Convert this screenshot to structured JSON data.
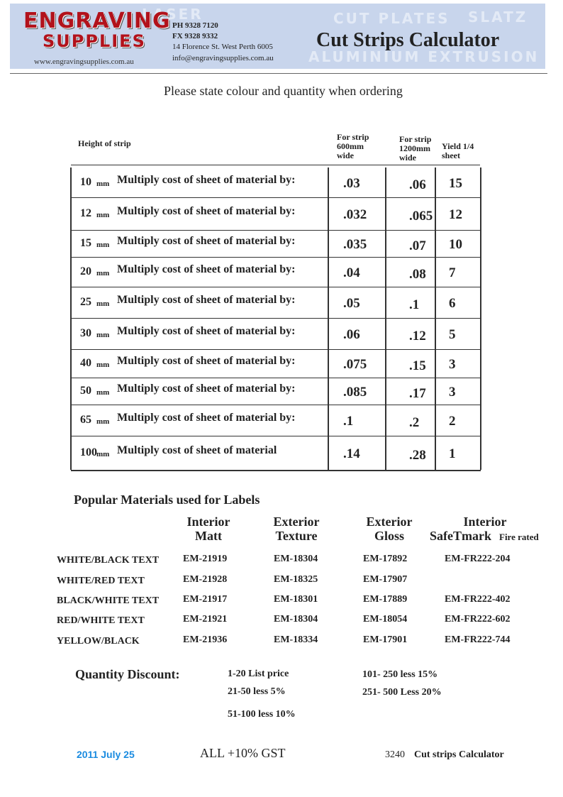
{
  "header": {
    "logo_line1": "ENGRAVING",
    "logo_line2": "SUPPLIES",
    "website": "www.engravingsupplies.com.au",
    "phone": "PH 9328 7120",
    "fax": "FX 9328 9332",
    "address": "14 Florence St. West Perth 6005",
    "email": "info@engravingsupplies.com.au",
    "title": "Cut Strips Calculator",
    "background_words": [
      "LASER",
      "CUT PLATES",
      "SLATZ",
      "ALUMINIUM EXTRUSION"
    ]
  },
  "instruction": "Please state colour and quantity when ordering",
  "table": {
    "headers": [
      "Height of strip",
      "For strip 600mm wide",
      "For strip 1200mm wide",
      "Yield 1/4 sheet"
    ],
    "rows": [
      [
        "10",
        "mm",
        "Multiply cost of sheet of material by:",
        ".03",
        ".06",
        "15"
      ],
      [
        "12",
        "mm",
        "Multiply cost of sheet of material by:",
        ".032",
        ".065",
        "12"
      ],
      [
        "15",
        "mm",
        "Multiply cost of sheet of material by:",
        ".035",
        ".07",
        "10"
      ],
      [
        "20",
        "mm",
        "Multiply cost of sheet of material by:",
        ".04",
        ".08",
        "7"
      ],
      [
        "25",
        "mm",
        "Multiply cost of sheet of material by:",
        ".05",
        ".1",
        "6"
      ],
      [
        "30",
        "mm",
        "Multiply cost of sheet of material by:",
        ".06",
        ".12",
        "5"
      ],
      [
        "40",
        "mm",
        "Multiply cost of sheet of material by:",
        ".075",
        ".15",
        "3"
      ],
      [
        "50",
        "mm",
        "Multiply cost of sheet of material by:",
        ".085",
        ".17",
        "3"
      ],
      [
        "65",
        "mm",
        "Multiply cost of sheet of material by:",
        ".1",
        ".2",
        "2"
      ],
      [
        "100",
        "mm",
        "Multiply cost of sheet of material",
        ".14",
        ".28",
        "1"
      ]
    ]
  },
  "materials": {
    "title": "Popular Materials used for Labels",
    "columns": [
      [
        "Interior",
        "Matt"
      ],
      [
        "Exterior",
        "Texture"
      ],
      [
        "Exterior",
        "Gloss"
      ],
      [
        "Interior",
        "SafeTmark",
        "Fire rated"
      ]
    ],
    "rows": [
      [
        "WHITE/BLACK TEXT",
        "EM-21919",
        "EM-18304",
        "EM-17892",
        "EM-FR222-204"
      ],
      [
        "WHITE/RED TEXT",
        "EM-21928",
        "EM-18325",
        "EM-17907",
        null
      ],
      [
        "BLACK/WHITE TEXT",
        "EM-21917",
        "EM-18301",
        "EM-17889",
        "EM-FR222-402"
      ],
      [
        "RED/WHITE TEXT",
        "EM-21921",
        "EM-18304",
        "EM-18054",
        "EM-FR222-602"
      ],
      [
        "YELLOW/BLACK",
        "EM-21936",
        "EM-18334",
        "EM-17901",
        "EM-FR222-744"
      ]
    ]
  },
  "discount": {
    "label": "Quantity Discount:",
    "items": [
      "1-20 List price",
      "21-50 less 5%",
      "51-100 less 10%",
      "101- 250  less 15%",
      "251- 500 Less 20%"
    ]
  },
  "footer": {
    "date": "2011 July 25",
    "gst": "ALL +10% GST",
    "ref_number": "3240",
    "ref_title": "Cut strips Calculator"
  }
}
